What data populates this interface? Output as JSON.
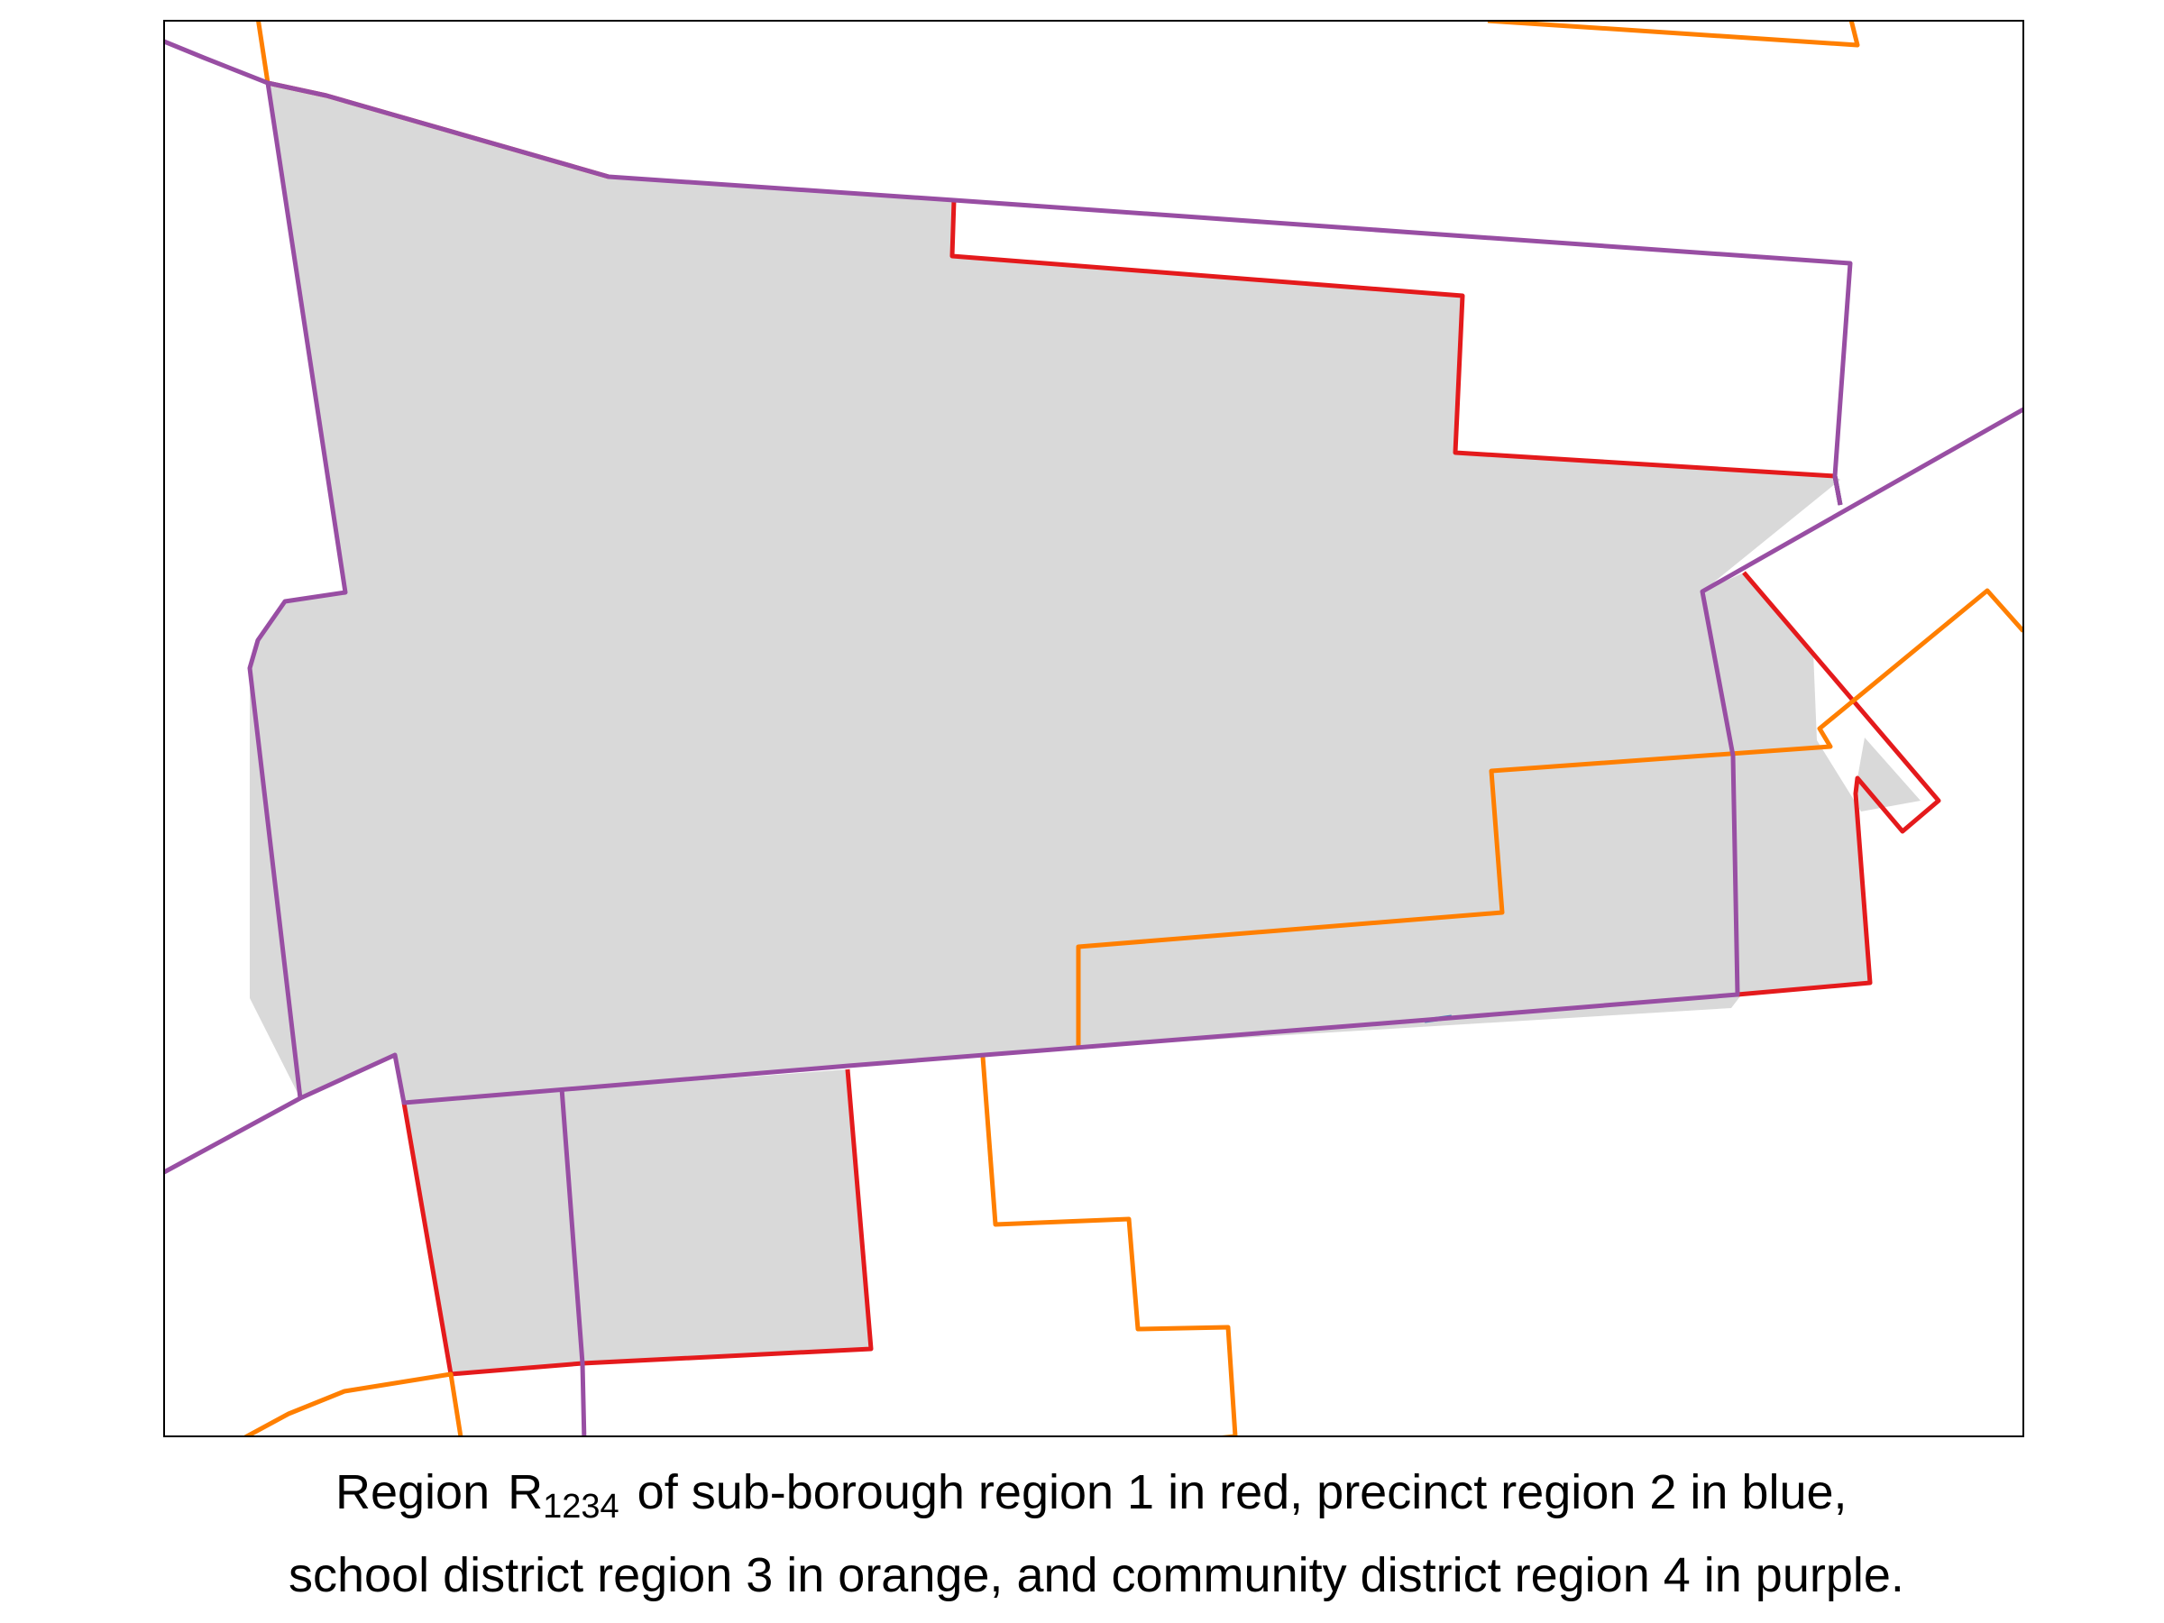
{
  "caption": {
    "line1_prefix": "Region",
    "region_symbol": "R",
    "region_subscript": "1234",
    "line1_suffix": "of sub-borough region 1 in red, precinct region 2 in blue,",
    "line2": "school district region 3 in orange, and community district region 4 in purple."
  },
  "colors": {
    "region_fill": "#d9d9d9",
    "sub_borough_region_1": "#e41a1c",
    "precinct_region_2": "#377eb8",
    "school_district_region_3": "#ff7f00",
    "community_district_region_4": "#984ea3",
    "frame": "#000000"
  }
}
